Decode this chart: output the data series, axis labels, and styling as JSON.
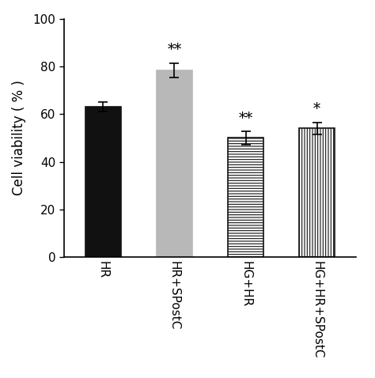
{
  "categories": [
    "HR",
    "HR+SPostC",
    "HG+HR",
    "HG+HR+SPostC"
  ],
  "values": [
    63.0,
    78.5,
    50.0,
    54.0
  ],
  "errors": [
    2.0,
    3.0,
    2.8,
    2.5
  ],
  "bar_colors": [
    "#111111",
    "#b8b8b8",
    "white",
    "white"
  ],
  "bar_hatches": [
    null,
    null,
    "-----",
    "|||||"
  ],
  "bar_edgecolors": [
    "#111111",
    "#b8b8b8",
    "#111111",
    "#111111"
  ],
  "significance": [
    "",
    "**",
    "**",
    "*"
  ],
  "ylabel": "Cell viability ( % )",
  "ylim": [
    0,
    100
  ],
  "yticks": [
    0,
    20,
    40,
    60,
    80,
    100
  ],
  "axis_fontsize": 12,
  "tick_fontsize": 11,
  "sig_fontsize": 13,
  "bar_width": 0.5,
  "background_color": "#ffffff",
  "hatch_lw": 0.8
}
